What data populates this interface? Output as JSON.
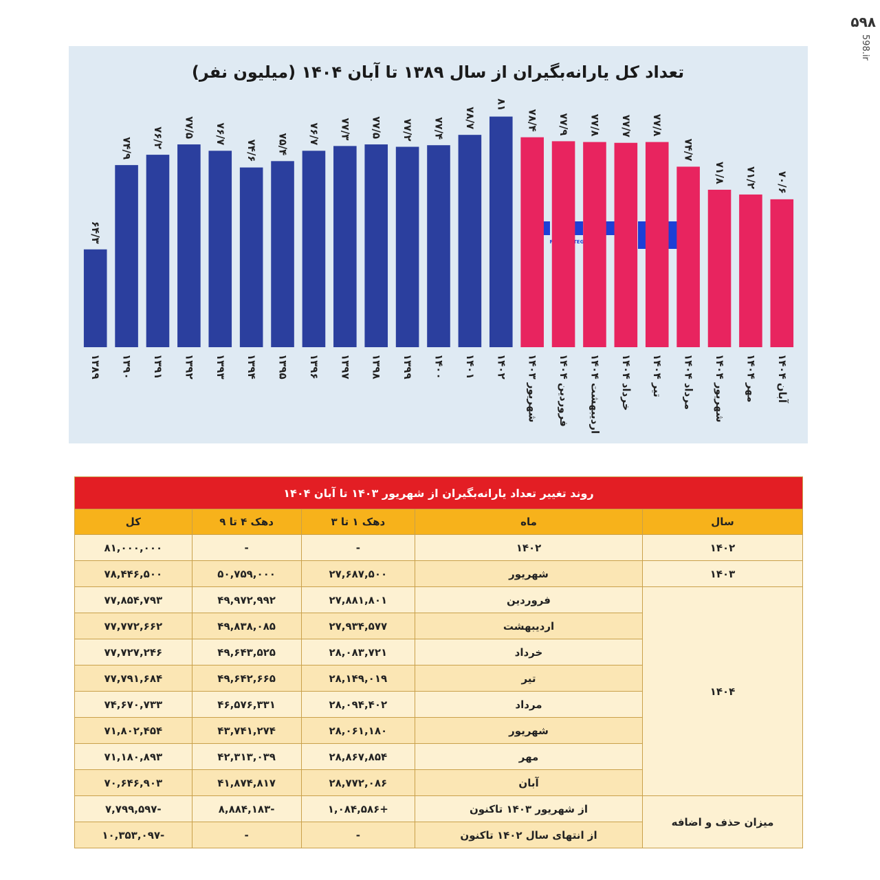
{
  "brand": "۵۹۸",
  "brand_url": "598.ir",
  "logo_text": "FARHIKHTEGANECO",
  "chart_data": {
    "type": "bar",
    "title": "تعداد کل یارانه‌بگیران از سال ۱۳۸۹ تا آبان ۱۴۰۴ (میلیون نفر)",
    "categories": [
      "۱۳۸۹",
      "۱۳۹۰",
      "۱۳۹۱",
      "۱۳۹۲",
      "۱۳۹۳",
      "۱۳۹۴",
      "۱۳۹۵",
      "۱۳۹۶",
      "۱۳۹۷",
      "۱۳۹۸",
      "۱۳۹۹",
      "۱۴۰۰",
      "۱۴۰۱",
      "۱۴۰۲",
      "شهریور ۱۴۰۳",
      "فروردین ۱۴۰۴",
      "اردیبهشت ۱۴۰۴",
      "خرداد ۱۴۰۴",
      "تیر ۱۴۰۴",
      "مرداد ۱۴۰۴",
      "شهریور ۱۴۰۴",
      "مهر ۱۴۰۴",
      "آبان ۱۴۰۴"
    ],
    "values": [
      64.3,
      74.9,
      76.2,
      77.5,
      76.7,
      74.6,
      75.4,
      76.7,
      77.3,
      77.5,
      77.2,
      77.4,
      78.7,
      81,
      78.4,
      77.9,
      77.8,
      77.7,
      77.8,
      74.7,
      71.8,
      71.2,
      70.6
    ],
    "value_labels": [
      "۶۴/۳",
      "۷۴/۹",
      "۷۶/۲",
      "۷۷/۵",
      "۷۶/۷",
      "۷۴/۶",
      "۷۵/۴",
      "۷۶/۷",
      "۷۷/۳",
      "۷۷/۵",
      "۷۷/۲",
      "۷۷/۴",
      "۷۸/۷",
      "۸۱",
      "۷۸/۴",
      "۷۷/۹",
      "۷۷/۸",
      "۷۷/۷",
      "۷۷/۸",
      "۷۴/۷",
      "۷۱/۸",
      "۷۱/۲",
      "۷۰/۶"
    ],
    "colors": [
      "#2b3f9e",
      "#2b3f9e",
      "#2b3f9e",
      "#2b3f9e",
      "#2b3f9e",
      "#2b3f9e",
      "#2b3f9e",
      "#2b3f9e",
      "#2b3f9e",
      "#2b3f9e",
      "#2b3f9e",
      "#2b3f9e",
      "#2b3f9e",
      "#2b3f9e",
      "#e8245f",
      "#e8245f",
      "#e8245f",
      "#e8245f",
      "#e8245f",
      "#e8245f",
      "#e8245f",
      "#e8245f",
      "#e8245f"
    ],
    "ylim": [
      52,
      82
    ]
  },
  "table": {
    "title": "روند تغییر تعداد یارانه‌بگیران از شهریور ۱۴۰۳ تا آبان ۱۴۰۴",
    "header": [
      "سال",
      "ماه",
      "دهک ۱ تا ۳",
      "دهک ۴ تا ۹",
      "کل"
    ],
    "groups": [
      {
        "label": "۱۴۰۲",
        "rows": [
          [
            "۱۴۰۲",
            "-",
            "-",
            "۸۱,۰۰۰,۰۰۰"
          ]
        ]
      },
      {
        "label": "۱۴۰۳",
        "rows": [
          [
            "شهریور",
            "۲۷,۶۸۷,۵۰۰",
            "۵۰,۷۵۹,۰۰۰",
            "۷۸,۴۴۶,۵۰۰"
          ]
        ]
      },
      {
        "label": "۱۴۰۴",
        "rows": [
          [
            "فروردین",
            "۲۷,۸۸۱,۸۰۱",
            "۴۹,۹۷۲,۹۹۲",
            "۷۷,۸۵۴,۷۹۳"
          ],
          [
            "اردیبهشت",
            "۲۷,۹۳۴,۵۷۷",
            "۴۹,۸۳۸,۰۸۵",
            "۷۷,۷۷۲,۶۶۲"
          ],
          [
            "خرداد",
            "۲۸,۰۸۳,۷۲۱",
            "۴۹,۶۴۳,۵۲۵",
            "۷۷,۷۲۷,۲۴۶"
          ],
          [
            "تیر",
            "۲۸,۱۴۹,۰۱۹",
            "۴۹,۶۴۲,۶۶۵",
            "۷۷,۷۹۱,۶۸۴"
          ],
          [
            "مرداد",
            "۲۸,۰۹۴,۴۰۲",
            "۴۶,۵۷۶,۳۳۱",
            "۷۴,۶۷۰,۷۳۳"
          ],
          [
            "شهریور",
            "۲۸,۰۶۱,۱۸۰",
            "۴۳,۷۴۱,۲۷۴",
            "۷۱,۸۰۲,۴۵۴"
          ],
          [
            "مهر",
            "۲۸,۸۶۷,۸۵۴",
            "۴۲,۳۱۳,۰۳۹",
            "۷۱,۱۸۰,۸۹۳"
          ],
          [
            "آبان",
            "۲۸,۷۷۲,۰۸۶",
            "۴۱,۸۷۴,۸۱۷",
            "۷۰,۶۴۶,۹۰۳"
          ]
        ]
      },
      {
        "label": "میزان حذف و اضافه",
        "rows": [
          [
            "از شهریور ۱۴۰۳ تاکنون",
            "+۱,۰۸۴,۵۸۶",
            "-۸,۸۸۴,۱۸۳",
            "-۷,۷۹۹,۵۹۷"
          ],
          [
            "از انتهای سال ۱۴۰۲ تاکنون",
            "-",
            "-",
            "-۱۰,۳۵۳,۰۹۷"
          ]
        ]
      }
    ]
  }
}
